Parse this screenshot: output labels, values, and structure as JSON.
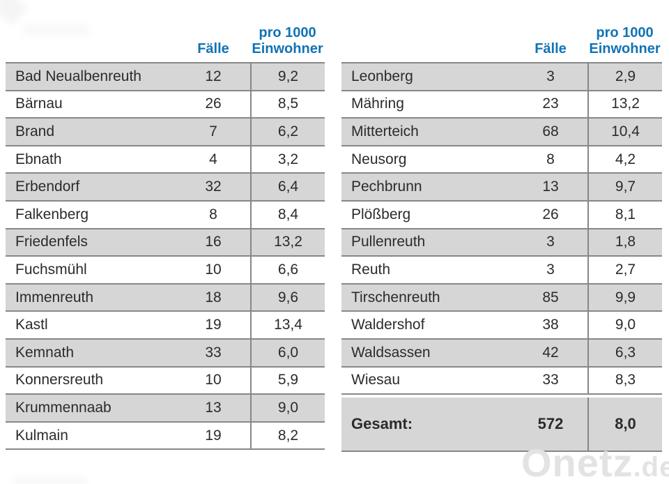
{
  "header": {
    "cases_label": "Fälle",
    "per1000_line1": "pro 1000",
    "per1000_line2": "Einwohner"
  },
  "tables": [
    {
      "rows": [
        {
          "name": "Bad Neualbenreuth",
          "cases": "12",
          "per_1000": "9,2"
        },
        {
          "name": "Bärnau",
          "cases": "26",
          "per_1000": "8,5"
        },
        {
          "name": "Brand",
          "cases": "7",
          "per_1000": "6,2"
        },
        {
          "name": "Ebnath",
          "cases": "4",
          "per_1000": "3,2"
        },
        {
          "name": "Erbendorf",
          "cases": "32",
          "per_1000": "6,4"
        },
        {
          "name": "Falkenberg",
          "cases": "8",
          "per_1000": "8,4"
        },
        {
          "name": "Friedenfels",
          "cases": "16",
          "per_1000": "13,2"
        },
        {
          "name": "Fuchsmühl",
          "cases": "10",
          "per_1000": "6,6"
        },
        {
          "name": "Immenreuth",
          "cases": "18",
          "per_1000": "9,6"
        },
        {
          "name": "Kastl",
          "cases": "19",
          "per_1000": "13,4"
        },
        {
          "name": "Kemnath",
          "cases": "33",
          "per_1000": "6,0"
        },
        {
          "name": "Konnersreuth",
          "cases": "10",
          "per_1000": "5,9"
        },
        {
          "name": "Krummennaab",
          "cases": "13",
          "per_1000": "9,0"
        },
        {
          "name": "Kulmain",
          "cases": "19",
          "per_1000": "8,2"
        }
      ]
    },
    {
      "rows": [
        {
          "name": "Leonberg",
          "cases": "3",
          "per_1000": "2,9"
        },
        {
          "name": "Mähring",
          "cases": "23",
          "per_1000": "13,2"
        },
        {
          "name": "Mitterteich",
          "cases": "68",
          "per_1000": "10,4"
        },
        {
          "name": "Neusorg",
          "cases": "8",
          "per_1000": "4,2"
        },
        {
          "name": "Pechbrunn",
          "cases": "13",
          "per_1000": "9,7"
        },
        {
          "name": "Plößberg",
          "cases": "26",
          "per_1000": "8,1"
        },
        {
          "name": "Pullenreuth",
          "cases": "3",
          "per_1000": "1,8"
        },
        {
          "name": "Reuth",
          "cases": "3",
          "per_1000": "2,7"
        },
        {
          "name": "Tirschenreuth",
          "cases": "85",
          "per_1000": "9,9"
        },
        {
          "name": "Waldershof",
          "cases": "38",
          "per_1000": "9,0"
        },
        {
          "name": "Waldsassen",
          "cases": "42",
          "per_1000": "6,3"
        },
        {
          "name": "Wiesau",
          "cases": "33",
          "per_1000": "8,3"
        }
      ],
      "total": {
        "label": "Gesamt:",
        "cases": "572",
        "per_1000": "8,0"
      }
    }
  ],
  "watermark": {
    "brand": "Onetz",
    "tld": ".de"
  },
  "colors": {
    "accent_blue": "#1173b4",
    "row_gray": "#d6d6d6",
    "border_gray": "#878787",
    "text": "#2b2b2b",
    "watermark_gray": "#e3e3e3"
  },
  "chart_data": [
    {
      "type": "table",
      "columns": [
        "",
        "Fälle",
        "pro 1000 Einwohner"
      ],
      "rows": [
        [
          "Bad Neualbenreuth",
          12,
          9.2
        ],
        [
          "Bärnau",
          26,
          8.5
        ],
        [
          "Brand",
          7,
          6.2
        ],
        [
          "Ebnath",
          4,
          3.2
        ],
        [
          "Erbendorf",
          32,
          6.4
        ],
        [
          "Falkenberg",
          8,
          8.4
        ],
        [
          "Friedenfels",
          16,
          13.2
        ],
        [
          "Fuchsmühl",
          10,
          6.6
        ],
        [
          "Immenreuth",
          18,
          9.6
        ],
        [
          "Kastl",
          19,
          13.4
        ],
        [
          "Kemnath",
          33,
          6.0
        ],
        [
          "Konnersreuth",
          10,
          5.9
        ],
        [
          "Krummennaab",
          13,
          9.0
        ],
        [
          "Kulmain",
          19,
          8.2
        ]
      ]
    },
    {
      "type": "table",
      "columns": [
        "",
        "Fälle",
        "pro 1000 Einwohner"
      ],
      "rows": [
        [
          "Leonberg",
          3,
          2.9
        ],
        [
          "Mähring",
          23,
          13.2
        ],
        [
          "Mitterteich",
          68,
          10.4
        ],
        [
          "Neusorg",
          8,
          4.2
        ],
        [
          "Pechbrunn",
          13,
          9.7
        ],
        [
          "Plößberg",
          26,
          8.1
        ],
        [
          "Pullenreuth",
          3,
          1.8
        ],
        [
          "Reuth",
          3,
          2.7
        ],
        [
          "Tirschenreuth",
          85,
          9.9
        ],
        [
          "Waldershof",
          38,
          9.0
        ],
        [
          "Waldsassen",
          42,
          6.3
        ],
        [
          "Wiesau",
          33,
          8.3
        ]
      ],
      "total_row": [
        "Gesamt:",
        572,
        8.0
      ]
    }
  ]
}
